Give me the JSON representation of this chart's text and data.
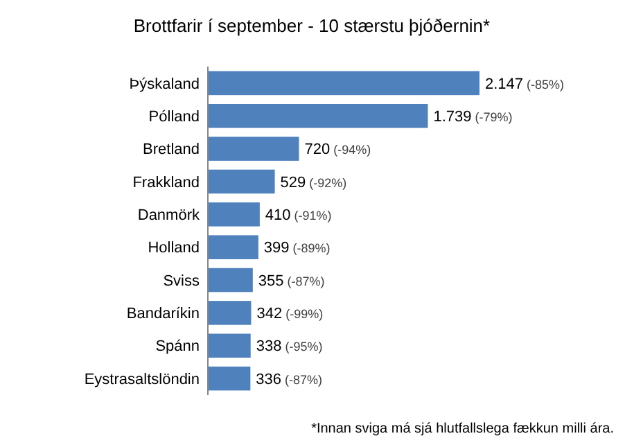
{
  "chart_data": {
    "type": "bar",
    "orientation": "horizontal",
    "title": "Brottfarir í september - 10 stærstu þjóðernin*",
    "categories": [
      "Þýskaland",
      "Pólland",
      "Bretland",
      "Frakkland",
      "Danmörk",
      "Holland",
      "Sviss",
      "Bandaríkin",
      "Spánn",
      "Eystrasaltslöndin"
    ],
    "values": [
      2147,
      1739,
      720,
      529,
      410,
      399,
      355,
      342,
      338,
      336
    ],
    "value_labels": [
      "2.147 (-85%)",
      "1.739 (-79%)",
      "720 (-94%)",
      "529 (-92%)",
      "410 (-91%)",
      "399 (-89%)",
      "355 (-87%)",
      "342 (-99%)",
      "338 (-95%)",
      "336 (-87%)"
    ],
    "color": "#4f81bd",
    "annotations": [
      "*Innan sviga má sjá hlutfallslega fækkun milli ára."
    ]
  }
}
